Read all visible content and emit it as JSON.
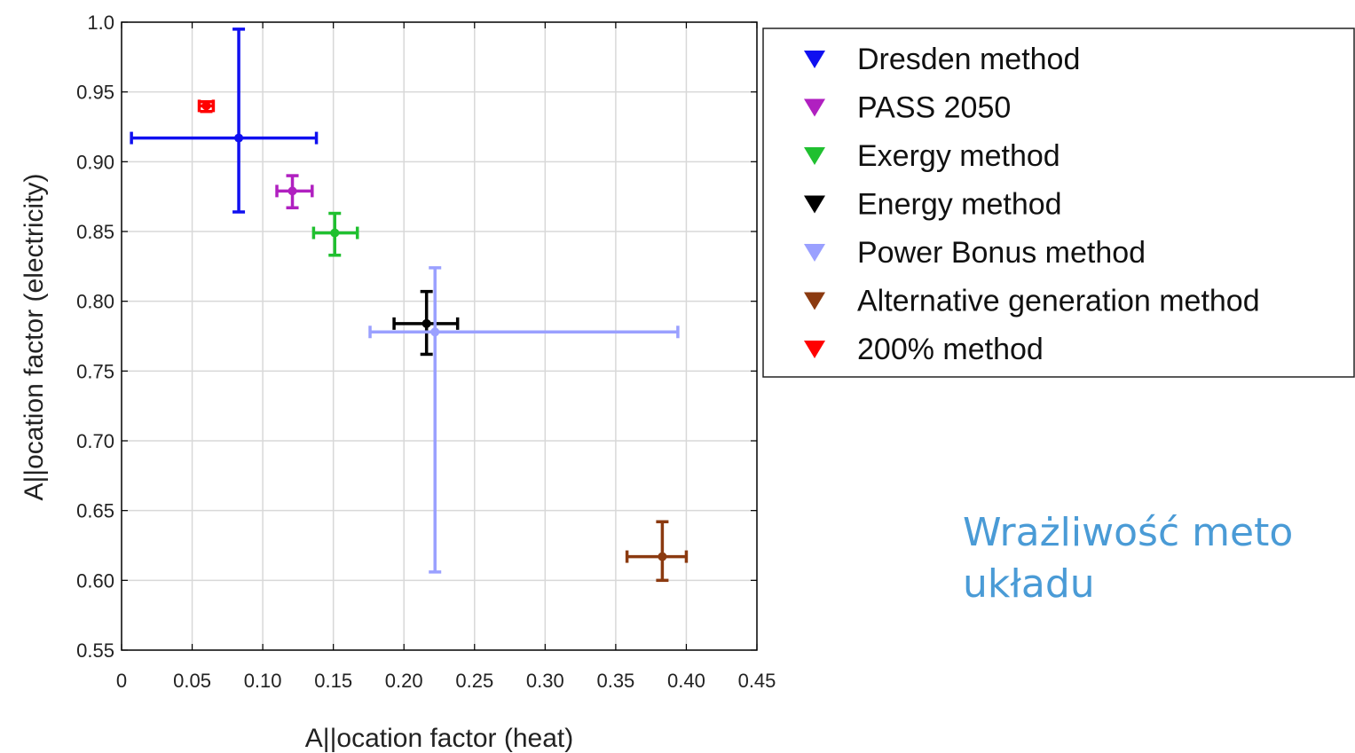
{
  "chart_data": {
    "type": "scatter",
    "title": "",
    "xlabel": "A||ocation factor (heat)",
    "ylabel": "A||ocation factor (electricity)",
    "xlim": [
      0,
      0.45
    ],
    "ylim": [
      0.55,
      1.0
    ],
    "x_ticks": [
      0,
      0.05,
      0.1,
      0.15,
      0.2,
      0.25,
      0.3,
      0.35,
      0.4,
      0.45
    ],
    "x_tick_labels": [
      "0",
      "0.05",
      "0.10",
      "0.15",
      "0.20",
      "0.25",
      "0.30",
      "0.35",
      "0.40",
      "0.45"
    ],
    "y_ticks": [
      0.55,
      0.6,
      0.65,
      0.7,
      0.75,
      0.8,
      0.85,
      0.9,
      0.95,
      1.0
    ],
    "y_tick_labels": [
      "0.55",
      "0.60",
      "0.65",
      "0.70",
      "0.75",
      "0.80",
      "0.85",
      "0.90",
      "0.95",
      "1.0"
    ],
    "grid": true,
    "legend_position": "top-right, outside plot",
    "series": [
      {
        "name": "Dresden method",
        "color": "#1010f0",
        "x": 0.083,
        "y": 0.917,
        "xerr": [
          0.007,
          0.138
        ],
        "yerr": [
          0.864,
          0.995
        ]
      },
      {
        "name": "PASS 2050",
        "color": "#b020c0",
        "x": 0.121,
        "y": 0.879,
        "xerr": [
          0.11,
          0.135
        ],
        "yerr": [
          0.867,
          0.89
        ]
      },
      {
        "name": "Exergy method",
        "color": "#20c030",
        "x": 0.151,
        "y": 0.849,
        "xerr": [
          0.136,
          0.167
        ],
        "yerr": [
          0.833,
          0.863
        ]
      },
      {
        "name": "Energy method",
        "color": "#000000",
        "x": 0.216,
        "y": 0.784,
        "xerr": [
          0.193,
          0.238
        ],
        "yerr": [
          0.762,
          0.807
        ]
      },
      {
        "name": "Power Bonus method",
        "color": "#9aa0ff",
        "x": 0.222,
        "y": 0.778,
        "xerr": [
          0.176,
          0.394
        ],
        "yerr": [
          0.606,
          0.824
        ]
      },
      {
        "name": "Alternative generation method",
        "color": "#8b3a10",
        "x": 0.383,
        "y": 0.617,
        "xerr": [
          0.358,
          0.4
        ],
        "yerr": [
          0.6,
          0.642
        ]
      },
      {
        "name": "200% method",
        "color": "#ff0000",
        "x": 0.06,
        "y": 0.94,
        "xerr": [
          0.055,
          0.065
        ],
        "yerr": [
          0.936,
          0.943
        ]
      }
    ]
  },
  "caption": {
    "line1": "Wrażliwość meto",
    "line2": "układu"
  }
}
